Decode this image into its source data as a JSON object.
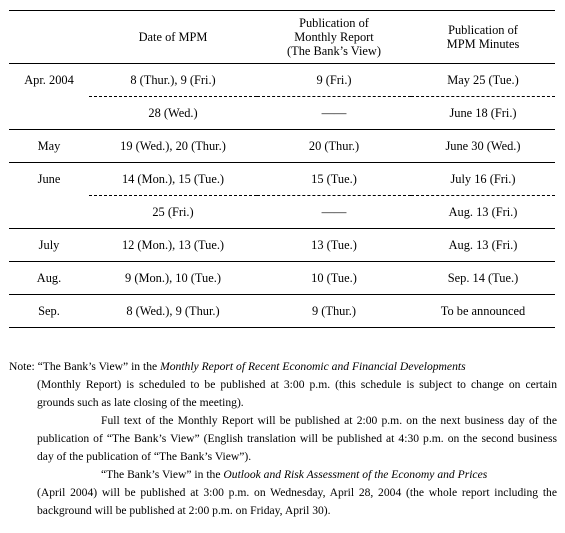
{
  "table": {
    "headers": [
      "",
      "Date of MPM",
      "Publication of\nMonthly Report\n(The Bank’s View)",
      "Publication of\nMPM Minutes"
    ],
    "header_lines": {
      "col2": [
        "Publication of",
        "Monthly Report",
        "(The Bank’s View)"
      ],
      "col3": [
        "Publication of",
        "MPM Minutes"
      ]
    },
    "rows": [
      {
        "month": "Apr. 2004",
        "mpm": "8 (Thur.), 9 (Fri.)",
        "report": "9 (Fri.)",
        "minutes": "May 25 (Tue.)",
        "kind": "grp"
      },
      {
        "month": "",
        "mpm": "28 (Wed.)",
        "report": "——",
        "minutes": "June 18 (Fri.)",
        "kind": "sub"
      },
      {
        "month": "May",
        "mpm": "19 (Wed.), 20 (Thur.)",
        "report": "20 (Thur.)",
        "minutes": "June 30 (Wed.)",
        "kind": "grp"
      },
      {
        "month": "June",
        "mpm": "14 (Mon.), 15 (Tue.)",
        "report": "15 (Tue.)",
        "minutes": "July 16 (Fri.)",
        "kind": "grp"
      },
      {
        "month": "",
        "mpm": "25 (Fri.)",
        "report": "——",
        "minutes": "Aug. 13 (Fri.)",
        "kind": "sub"
      },
      {
        "month": "July",
        "mpm": "12 (Mon.), 13 (Tue.)",
        "report": "13 (Tue.)",
        "minutes": "Aug. 13 (Fri.)",
        "kind": "grp"
      },
      {
        "month": "Aug.",
        "mpm": "9 (Mon.), 10 (Tue.)",
        "report": "10 (Tue.)",
        "minutes": "Sep. 14 (Tue.)",
        "kind": "grp"
      },
      {
        "month": "Sep.",
        "mpm": "8 (Wed.), 9 (Thur.)",
        "report": "9 (Thur.)",
        "minutes": "To be announced",
        "kind": "grp"
      }
    ]
  },
  "note": {
    "p1_a": "Note: “The Bank’s View” in the ",
    "p1_em": "Monthly Report of Recent Economic and Financial Developments",
    "p1_b": "(Monthly Report) is scheduled to be published at 3:00 p.m. (this schedule is subject to change on certain grounds such as late closing of the meeting).",
    "p2": "Full text of the Monthly Report will be published at 2:00 p.m. on the next business day of the publication of “The Bank’s View” (English translation will be published at 4:30 p.m. on the second business day of the publication of “The Bank’s View”).",
    "p3_a": "“The Bank’s View” in the ",
    "p3_em": "Outlook and Risk Assessment of the Economy and Prices",
    "p3_b": "(April 2004) will be published at 3:00 p.m. on Wednesday, April 28, 2004 (the whole report including the background will be published at 2:00 p.m. on Friday, April 30)."
  }
}
